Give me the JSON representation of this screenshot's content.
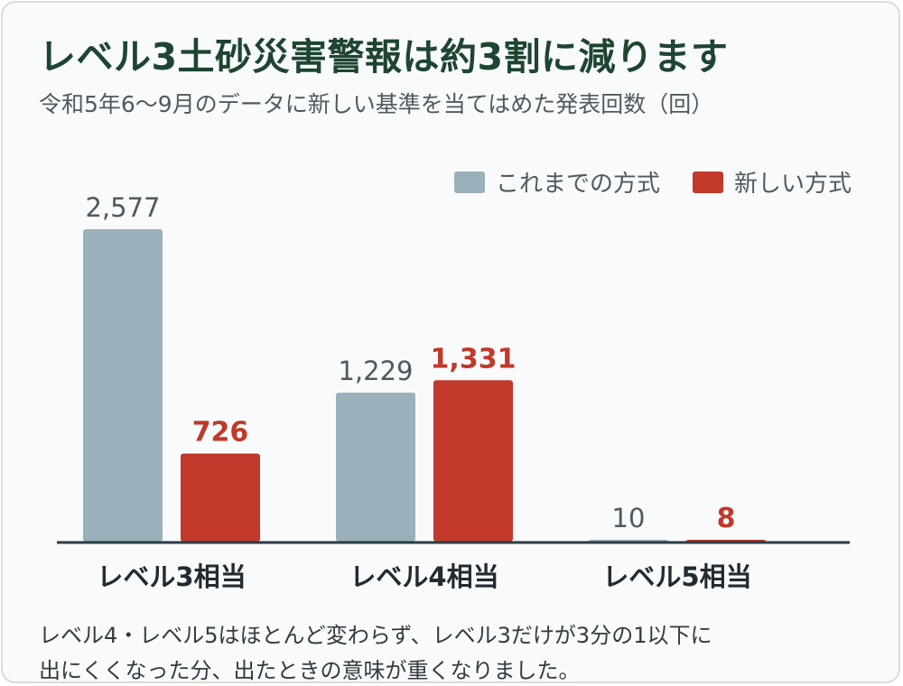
{
  "title": "レベル3土砂災害警報は約3割に減ります",
  "subtitle": "令和5年6〜9月のデータに新しい基準を当てはめた発表回数（回）",
  "colors": {
    "old": "#9ab0bb",
    "new": "#c0392b",
    "axis": "#2b3b44",
    "category_text": "#222b30",
    "old_label": "#4f5a5e",
    "new_label": "#c0392b"
  },
  "chart_data": {
    "type": "bar",
    "categories": [
      "レベル3相当",
      "レベル4相当",
      "レベル5相当"
    ],
    "series": [
      {
        "name": "これまでの方式",
        "values": [
          2577,
          1229,
          10
        ],
        "labels": [
          "2,577",
          "1,229",
          "10"
        ]
      },
      {
        "name": "新しい方式",
        "values": [
          726,
          1331,
          8
        ],
        "labels": [
          "726",
          "1,331",
          "8"
        ]
      }
    ],
    "ylim": [
      0,
      2577
    ],
    "grid": false,
    "legend": "top-right",
    "xlabel": "",
    "ylabel": ""
  },
  "note": {
    "line1": "レベル4・レベル5はほとんど変わらず、レベル3だけが3分の1以下に",
    "line2": "出にくくなった分、出たときの意味が重くなりました。"
  }
}
